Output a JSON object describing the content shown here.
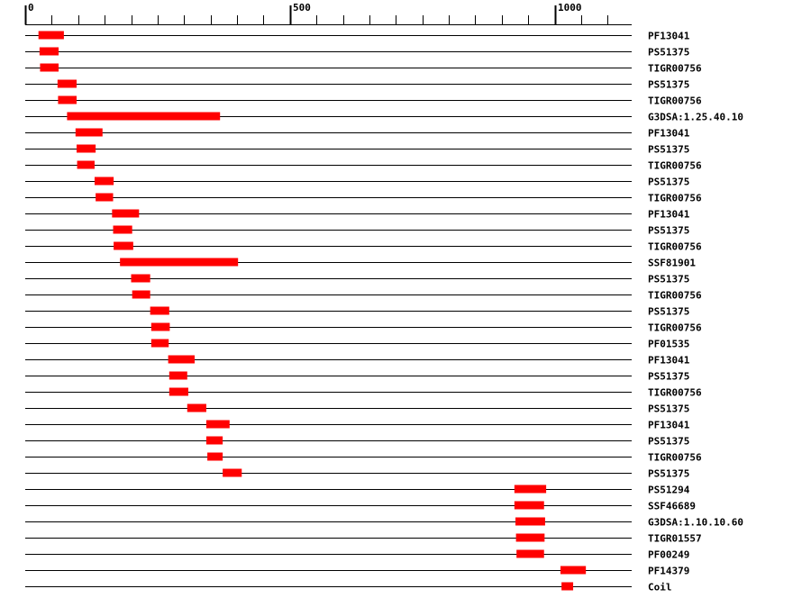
{
  "colors": {
    "feature": "#ff0000",
    "line": "#000000",
    "text": "#000000",
    "background": "#ffffff"
  },
  "axis": {
    "min": 0,
    "max": 1130,
    "major_ticks": [
      {
        "value": 0,
        "label": "0"
      },
      {
        "value": 500,
        "label": "500"
      },
      {
        "value": 1000,
        "label": "1000"
      }
    ],
    "minor_tick_step": 50
  },
  "tracks": [
    {
      "label": "PF13041",
      "start": 25,
      "end": 73
    },
    {
      "label": "PS51375",
      "start": 27,
      "end": 63
    },
    {
      "label": "TIGR00756",
      "start": 28,
      "end": 63
    },
    {
      "label": "PS51375",
      "start": 61,
      "end": 97
    },
    {
      "label": "TIGR00756",
      "start": 62,
      "end": 97
    },
    {
      "label": "G3DSA:1.25.40.10",
      "start": 79,
      "end": 368
    },
    {
      "label": "PF13041",
      "start": 95,
      "end": 146
    },
    {
      "label": "PS51375",
      "start": 97,
      "end": 133
    },
    {
      "label": "TIGR00756",
      "start": 98,
      "end": 131
    },
    {
      "label": "PS51375",
      "start": 131,
      "end": 167
    },
    {
      "label": "TIGR00756",
      "start": 133,
      "end": 166
    },
    {
      "label": "PF13041",
      "start": 164,
      "end": 215
    },
    {
      "label": "PS51375",
      "start": 166,
      "end": 202
    },
    {
      "label": "TIGR00756",
      "start": 167,
      "end": 204
    },
    {
      "label": "SSF81901",
      "start": 179,
      "end": 402
    },
    {
      "label": "PS51375",
      "start": 200,
      "end": 236
    },
    {
      "label": "TIGR00756",
      "start": 202,
      "end": 236
    },
    {
      "label": "PS51375",
      "start": 236,
      "end": 272
    },
    {
      "label": "TIGR00756",
      "start": 238,
      "end": 273
    },
    {
      "label": "PF01535",
      "start": 238,
      "end": 271
    },
    {
      "label": "PF13041",
      "start": 270,
      "end": 320
    },
    {
      "label": "PS51375",
      "start": 272,
      "end": 306
    },
    {
      "label": "TIGR00756",
      "start": 272,
      "end": 308
    },
    {
      "label": "PS51375",
      "start": 306,
      "end": 342
    },
    {
      "label": "PF13041",
      "start": 342,
      "end": 386
    },
    {
      "label": "PS51375",
      "start": 342,
      "end": 373
    },
    {
      "label": "TIGR00756",
      "start": 344,
      "end": 373
    },
    {
      "label": "PS51375",
      "start": 373,
      "end": 409
    },
    {
      "label": "PS51294",
      "start": 924,
      "end": 984
    },
    {
      "label": "SSF46689",
      "start": 924,
      "end": 980
    },
    {
      "label": "G3DSA:1.10.10.60",
      "start": 926,
      "end": 982
    },
    {
      "label": "TIGR01557",
      "start": 927,
      "end": 981
    },
    {
      "label": "PF00249",
      "start": 928,
      "end": 980
    },
    {
      "label": "PF14379",
      "start": 1011,
      "end": 1059
    },
    {
      "label": "Coil",
      "start": 1013,
      "end": 1035
    }
  ]
}
